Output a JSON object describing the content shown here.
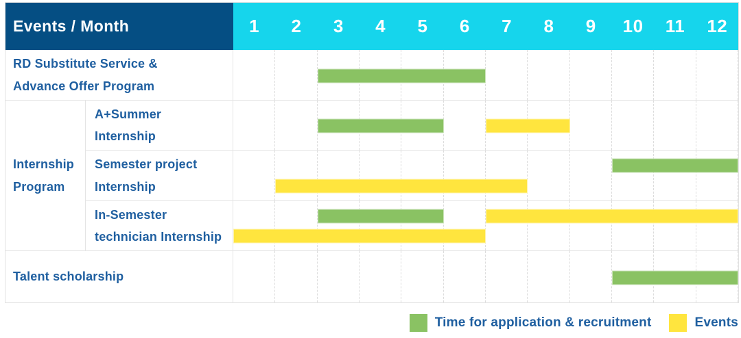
{
  "colors": {
    "header_bg": "#054e83",
    "months_bg": "#16d5ec",
    "label_blue": "#1f5fa0",
    "application_green": "#8ac263",
    "events_yellow": "#ffe53e"
  },
  "table": {
    "header": {
      "events_month_label": "Events / Month"
    }
  },
  "chart_data": {
    "type": "gantt",
    "x_unit": "month",
    "x_range": [
      1,
      12
    ],
    "months": [
      "1",
      "2",
      "3",
      "4",
      "5",
      "6",
      "7",
      "8",
      "9",
      "10",
      "11",
      "12"
    ],
    "grid": "dashed-vertical-month-lines",
    "legend_position": "bottom-right",
    "legend": [
      {
        "key": "application",
        "label": "Time for application & recruitment",
        "color": "#8ac263"
      },
      {
        "key": "events",
        "label": "Events",
        "color": "#ffe53e"
      }
    ],
    "group_label": "Internship\nProgram",
    "rows": [
      {
        "group": "",
        "label": "RD Substitute Service &\nAdvance Offer Program",
        "bars": [
          {
            "series": "application",
            "start_month": 3,
            "end_month": 6,
            "lane": "center"
          }
        ]
      },
      {
        "group": "Internship Program",
        "label": "A+Summer\nInternship",
        "bars": [
          {
            "series": "application",
            "start_month": 3,
            "end_month": 5,
            "lane": "center"
          },
          {
            "series": "events",
            "start_month": 7,
            "end_month": 8,
            "lane": "center"
          }
        ]
      },
      {
        "group": "Internship Program",
        "label": "Semester project\nInternship",
        "bars": [
          {
            "series": "application",
            "start_month": 10,
            "end_month": 12,
            "lane": "top"
          },
          {
            "series": "events",
            "start_month": 2,
            "end_month": 7,
            "lane": "bottom"
          }
        ]
      },
      {
        "group": "Internship Program",
        "label": "In-Semester\ntechnician Internship",
        "bars": [
          {
            "series": "application",
            "start_month": 3,
            "end_month": 5,
            "lane": "top"
          },
          {
            "series": "events",
            "start_month": 7,
            "end_month": 12,
            "lane": "top"
          },
          {
            "series": "events",
            "start_month": 1,
            "end_month": 6,
            "lane": "bottom"
          }
        ]
      },
      {
        "group": "",
        "label": "Talent scholarship",
        "bars": [
          {
            "series": "application",
            "start_month": 10,
            "end_month": 12,
            "lane": "center"
          }
        ]
      }
    ]
  }
}
